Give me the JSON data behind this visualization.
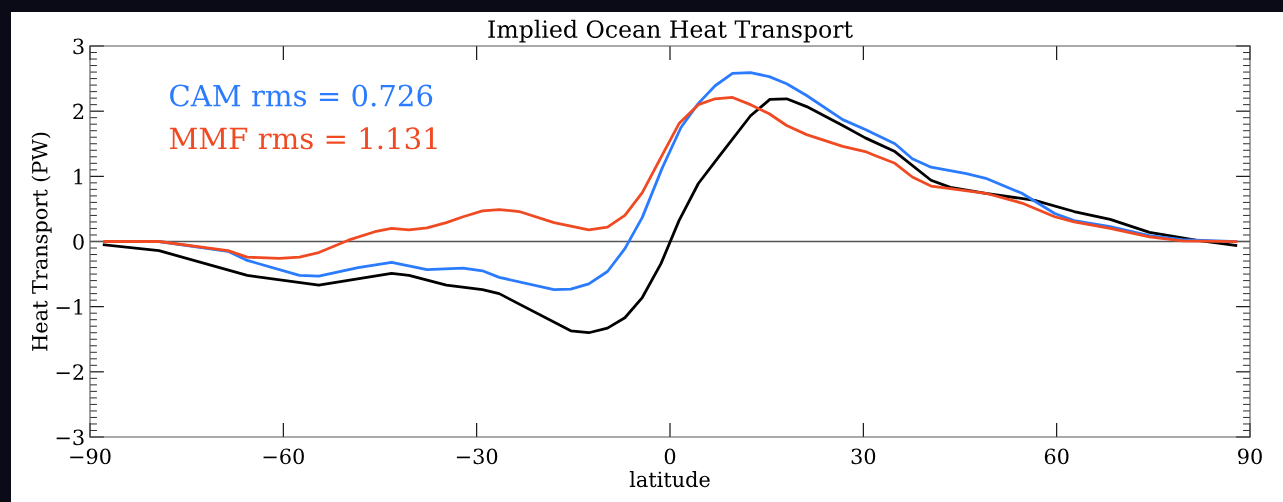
{
  "chart_data": {
    "type": "line",
    "title": "Implied Ocean Heat Transport",
    "xlabel": "latitude",
    "ylabel": "Heat Transport (PW)",
    "xlim": [
      -90,
      90
    ],
    "ylim": [
      -3,
      3
    ],
    "xticks": [
      {
        "value": -90,
        "label": "−90"
      },
      {
        "value": -60,
        "label": "−60"
      },
      {
        "value": -30,
        "label": "−30"
      },
      0,
      30,
      60,
      90
    ],
    "yticks": [
      {
        "value": -3,
        "label": "−3"
      },
      {
        "value": -2,
        "label": "−2"
      },
      {
        "value": -1,
        "label": "−1"
      },
      0,
      1,
      2,
      3
    ],
    "grid": false,
    "legend": "top left",
    "marker": "none",
    "line_style": "solid",
    "ref_lines": [
      {
        "axis": "y",
        "value": 0,
        "color": "#555555"
      }
    ],
    "series": [
      {
        "color": "#000000",
        "x": [
          -87.8,
          -79.3,
          -65.6,
          -54.5,
          -43.2,
          -40.5,
          -34.7,
          -29.1,
          -26.5,
          -15.4,
          -12.6,
          -9.7,
          -7.0,
          -4.3,
          -1.4,
          1.4,
          4.4,
          7.5,
          12.5,
          15.5,
          18.1,
          21.2,
          26.8,
          30.3,
          34.9,
          40.5,
          43.5,
          49.0,
          56.6,
          62.7,
          68.3,
          74.4,
          81.6,
          87.8
        ],
        "values": [
          -0.05,
          -0.14,
          -0.52,
          -0.67,
          -0.49,
          -0.52,
          -0.67,
          -0.74,
          -0.8,
          -1.37,
          -1.4,
          -1.33,
          -1.17,
          -0.86,
          -0.34,
          0.32,
          0.89,
          1.29,
          1.93,
          2.18,
          2.19,
          2.07,
          1.78,
          1.59,
          1.38,
          0.94,
          0.83,
          0.74,
          0.63,
          0.46,
          0.34,
          0.14,
          0.02,
          -0.06
        ]
      },
      {
        "name": "CAM rms = 0.726",
        "color": "#2b7bff",
        "x": [
          -87.7,
          -79.3,
          -68.6,
          -65.6,
          -57.5,
          -54.5,
          -48.4,
          -43.2,
          -37.7,
          -32.1,
          -29.1,
          -26.5,
          -18.0,
          -15.4,
          -12.6,
          -9.7,
          -7.0,
          -4.3,
          -1.2,
          1.7,
          4.4,
          7.0,
          9.7,
          12.5,
          15.4,
          18.1,
          21.2,
          26.8,
          30.3,
          34.9,
          37.6,
          40.5,
          46.0,
          49.0,
          54.6,
          59.7,
          62.7,
          68.3,
          74.4,
          79.5,
          87.8
        ],
        "values": [
          0.0,
          0.0,
          -0.15,
          -0.29,
          -0.52,
          -0.53,
          -0.4,
          -0.32,
          -0.43,
          -0.41,
          -0.45,
          -0.55,
          -0.74,
          -0.73,
          -0.65,
          -0.46,
          -0.11,
          0.37,
          1.13,
          1.75,
          2.12,
          2.39,
          2.58,
          2.59,
          2.53,
          2.42,
          2.24,
          1.87,
          1.72,
          1.5,
          1.27,
          1.14,
          1.04,
          0.97,
          0.74,
          0.43,
          0.32,
          0.23,
          0.09,
          0.03,
          0.0
        ]
      },
      {
        "name": "MMF rms = 1.131",
        "color": "#f04a23",
        "x": [
          -87.7,
          -79.3,
          -68.6,
          -65.6,
          -60.6,
          -57.5,
          -54.5,
          -49.9,
          -45.8,
          -43.2,
          -40.5,
          -37.7,
          -34.7,
          -32.1,
          -29.1,
          -26.5,
          -23.4,
          -18.0,
          -12.6,
          -9.7,
          -7.0,
          -4.3,
          -1.4,
          1.4,
          4.4,
          7.0,
          9.7,
          12.5,
          15.4,
          18.1,
          21.2,
          26.8,
          30.3,
          31.8,
          34.9,
          37.6,
          40.5,
          43.5,
          49.0,
          54.6,
          59.7,
          62.7,
          68.3,
          74.4,
          79.5,
          87.8
        ],
        "values": [
          0.0,
          0.0,
          -0.14,
          -0.24,
          -0.26,
          -0.24,
          -0.17,
          0.02,
          0.15,
          0.2,
          0.18,
          0.21,
          0.29,
          0.38,
          0.47,
          0.49,
          0.46,
          0.29,
          0.18,
          0.22,
          0.4,
          0.75,
          1.29,
          1.81,
          2.1,
          2.19,
          2.21,
          2.1,
          1.96,
          1.78,
          1.64,
          1.46,
          1.38,
          1.32,
          1.2,
          0.99,
          0.85,
          0.81,
          0.74,
          0.59,
          0.38,
          0.3,
          0.2,
          0.07,
          0.01,
          0.0
        ]
      }
    ]
  }
}
